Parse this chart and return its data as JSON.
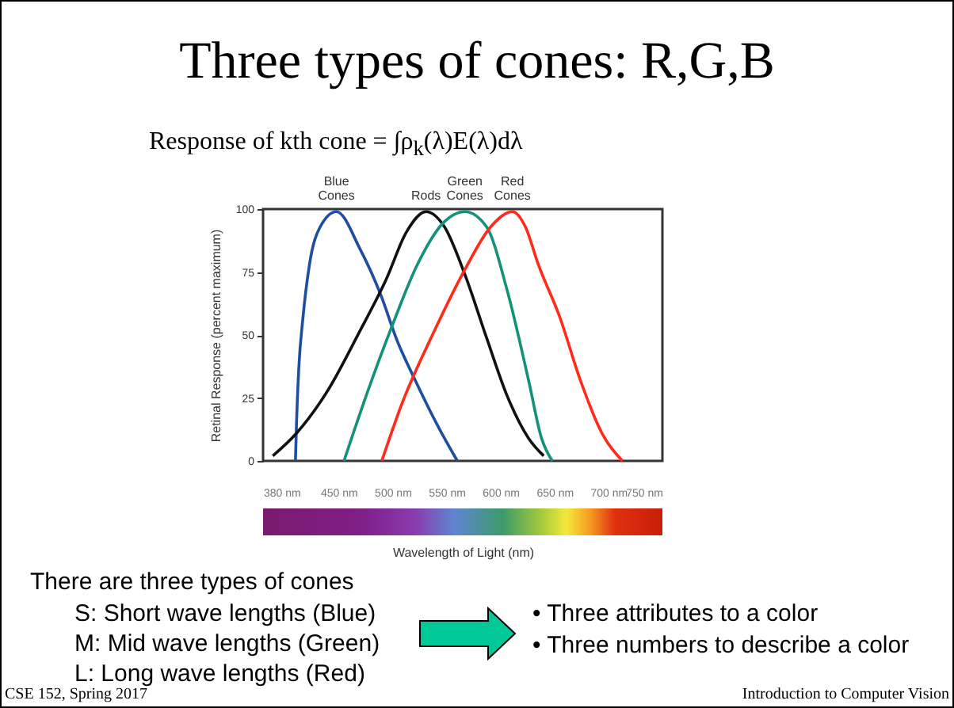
{
  "chart_data": {
    "type": "line",
    "title": "Three types of cones: R,G,B",
    "subtitle": "Response of kth cone = ∫ρ$_{k}$(λ)E(λ)dλ",
    "xlabel": "Wavelength of Light (nm)",
    "ylabel": "Retinal Response (percent maximum)",
    "xlim": [
      380,
      750
    ],
    "xticks": [
      {
        "value": 380,
        "label": "380 nm"
      },
      {
        "value": 450,
        "label": "450 nm"
      },
      {
        "value": 500,
        "label": "500 nm"
      },
      {
        "value": 550,
        "label": "550 nm"
      },
      {
        "value": 600,
        "label": "600 nm"
      },
      {
        "value": 650,
        "label": "650 nm"
      },
      {
        "value": 700,
        "label": "700 nm"
      },
      {
        "value": 750,
        "label": "750 nm"
      }
    ],
    "ylim": [
      0,
      100
    ],
    "yticks": [
      0,
      25,
      50,
      75,
      100
    ],
    "grid": false,
    "legend": false,
    "marker": "none",
    "line_style": "solid",
    "series": [
      {
        "name": "Blue Cones",
        "color": "#1f4e9e",
        "x": [
          410,
          411,
          413,
          417,
          423,
          433,
          448,
          470,
          489,
          504,
          521,
          543,
          560
        ],
        "values": [
          0,
          15,
          36,
          57,
          78,
          93,
          99,
          84,
          66,
          48,
          32,
          13,
          0
        ]
      },
      {
        "name": "Rods",
        "color": "#111111",
        "x": [
          389,
          411,
          440,
          469,
          494,
          513,
          531,
          548,
          567,
          587,
          606,
          626,
          640
        ],
        "values": [
          2,
          11,
          28,
          51,
          72,
          91,
          99,
          93,
          74,
          49,
          26,
          9,
          2
        ]
      },
      {
        "name": "Green Cones",
        "color": "#14917a",
        "x": [
          455,
          474,
          499,
          523,
          548,
          567,
          587,
          606,
          626,
          638,
          648
        ],
        "values": [
          0,
          24,
          53,
          78,
          95,
          99,
          93,
          68,
          32,
          9,
          0
        ]
      },
      {
        "name": "Red Cones",
        "color": "#ff2a1a",
        "x": [
          490,
          508,
          538,
          567,
          591,
          611,
          623,
          635,
          655,
          674,
          694,
          713
        ],
        "values": [
          0,
          22,
          51,
          76,
          93,
          99,
          93,
          78,
          57,
          32,
          11,
          0
        ]
      }
    ],
    "annotations": [
      "There are three types of cones",
      "S: Short wave lengths (Blue)",
      "M: Mid wave lengths (Green)",
      "L: Long wave lengths (Red)",
      "• Three attributes to a color",
      "• Three numbers to describe a color",
      "CSE 152, Spring 2017",
      "Introduction to Computer Vision"
    ]
  }
}
